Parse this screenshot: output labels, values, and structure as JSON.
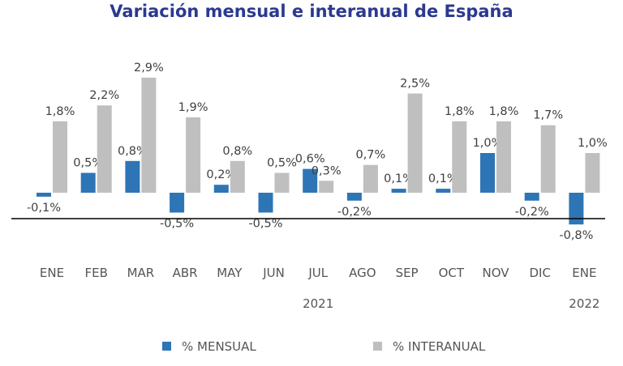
{
  "chart_data": {
    "type": "bar",
    "title": "Variación mensual e interanual de España",
    "categories": [
      "ENE",
      "FEB",
      "MAR",
      "ABR",
      "MAY",
      "JUN",
      "JUL",
      "AGO",
      "SEP",
      "OCT",
      "NOV",
      "DIC",
      "ENE"
    ],
    "years": [
      {
        "label": "2021",
        "category_index": 6
      },
      {
        "label": "2022",
        "category_index": 12
      }
    ],
    "series": [
      {
        "name": "% MENSUAL",
        "color": "#2e75b6",
        "values": [
          -0.1,
          0.5,
          0.8,
          -0.5,
          0.2,
          -0.5,
          0.6,
          -0.2,
          0.1,
          0.1,
          1.0,
          -0.2,
          -0.8
        ],
        "labels": [
          "-0,1%",
          "0,5%",
          "0,8%",
          "-0,5%",
          "0,2%",
          "-0,5%",
          "0,6%",
          "-0,2%",
          "0,1%",
          "0,1%",
          "1,0%",
          "-0,2%",
          "-0,8%"
        ]
      },
      {
        "name": "% INTERANUAL",
        "color": "#bfbfbf",
        "values": [
          1.8,
          2.2,
          2.9,
          1.9,
          0.8,
          0.5,
          0.3,
          0.7,
          2.5,
          1.8,
          1.8,
          1.7,
          1.0
        ],
        "labels": [
          "1,8%",
          "2,2%",
          "2,9%",
          "1,9%",
          "0,8%",
          "0,5%",
          "0,3%",
          "0,7%",
          "2,5%",
          "1,8%",
          "1,8%",
          "1,7%",
          "1,0%"
        ]
      }
    ],
    "legend_position": "bottom",
    "grid": false
  },
  "colors": {
    "title": "#2b3990",
    "axis_line": "#000000"
  }
}
